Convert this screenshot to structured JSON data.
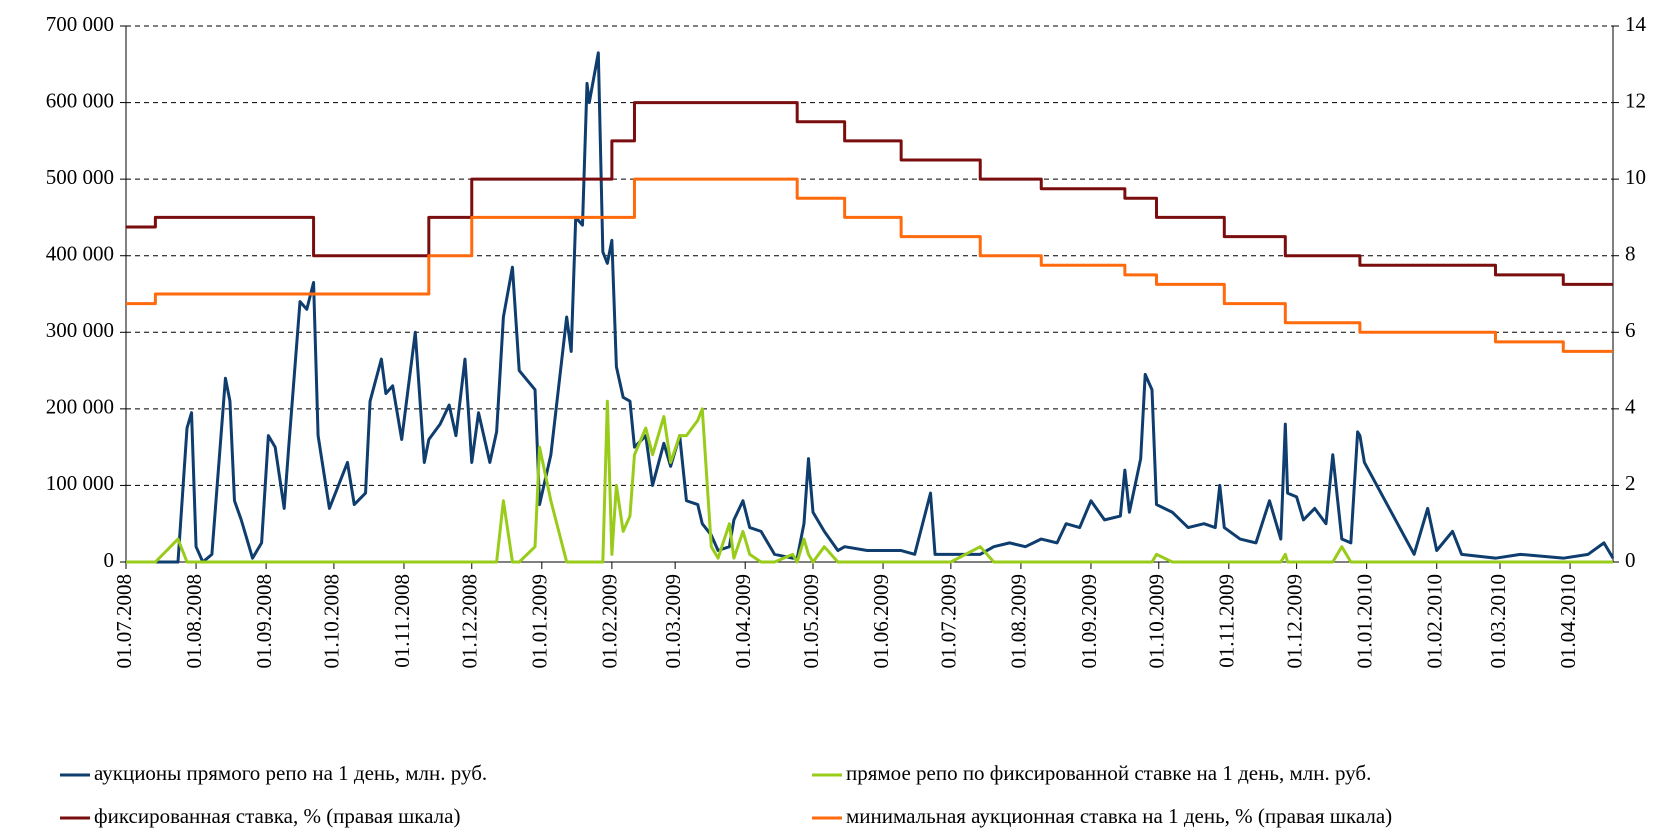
{
  "chart_data": {
    "type": "line",
    "x": [
      "01.07.2008",
      "14.07.2008",
      "24.07.2008",
      "28.07.2008",
      "30.07.2008",
      "01.08.2008",
      "04.08.2008",
      "08.08.2008",
      "14.08.2008",
      "16.08.2008",
      "18.08.2008",
      "21.08.2008",
      "26.08.2008",
      "30.08.2008",
      "02.09.2008",
      "05.09.2008",
      "09.09.2008",
      "11.09.2008",
      "16.09.2008",
      "19.09.2008",
      "22.09.2008",
      "24.09.2008",
      "29.09.2008",
      "07.10.2008",
      "10.10.2008",
      "15.10.2008",
      "17.10.2008",
      "22.10.2008",
      "24.10.2008",
      "27.10.2008",
      "31.10.2008",
      "06.11.2008",
      "10.11.2008",
      "12.11.2008",
      "17.11.2008",
      "21.11.2008",
      "24.11.2008",
      "28.11.2008",
      "01.12.2008",
      "04.12.2008",
      "09.12.2008",
      "12.12.2008",
      "15.12.2008",
      "19.12.2008",
      "22.12.2008",
      "29.12.2008",
      "31.12.2008",
      "05.01.2009",
      "12.01.2009",
      "14.01.2009",
      "16.01.2009",
      "19.01.2009",
      "21.01.2009",
      "22.01.2009",
      "26.01.2009",
      "28.01.2009",
      "30.01.2009",
      "01.02.2009",
      "03.02.2009",
      "06.02.2009",
      "09.02.2009",
      "11.02.2009",
      "16.02.2009",
      "19.02.2009",
      "24.02.2009",
      "27.02.2009",
      "03.03.2009",
      "06.03.2009",
      "11.03.2009",
      "13.03.2009",
      "17.03.2009",
      "20.03.2009",
      "25.03.2009",
      "27.03.2009",
      "31.03.2009",
      "03.04.2009",
      "08.04.2009",
      "14.04.2009",
      "22.04.2009",
      "24.04.2009",
      "27.04.2009",
      "29.04.2009",
      "01.05.2009",
      "06.05.2009",
      "12.05.2009",
      "15.05.2009",
      "25.05.2009",
      "05.06.2009",
      "09.06.2009",
      "15.06.2009",
      "22.06.2009",
      "24.06.2009",
      "01.07.2009",
      "14.07.2009",
      "20.07.2009",
      "27.07.2009",
      "03.08.2009",
      "10.08.2009",
      "17.08.2009",
      "21.08.2009",
      "27.08.2009",
      "01.09.2009",
      "07.09.2009",
      "14.09.2009",
      "16.09.2009",
      "18.09.2009",
      "23.09.2009",
      "25.09.2009",
      "28.09.2009",
      "30.09.2009",
      "07.10.2009",
      "14.10.2009",
      "21.10.2009",
      "26.10.2009",
      "28.10.2009",
      "30.10.2009",
      "06.11.2009",
      "13.11.2009",
      "19.11.2009",
      "24.11.2009",
      "26.11.2009",
      "27.11.2009",
      "01.12.2009",
      "04.12.2009",
      "09.12.2009",
      "14.12.2009",
      "17.12.2009",
      "21.12.2009",
      "25.12.2009",
      "28.12.2009",
      "29.12.2009",
      "31.12.2009",
      "22.01.2010",
      "28.01.2010",
      "01.02.2010",
      "08.02.2010",
      "12.02.2010",
      "27.02.2010",
      "10.03.2010",
      "29.03.2010",
      "09.04.2010",
      "16.04.2010",
      "20.04.2010"
    ],
    "series": [
      {
        "name": "аукционы прямого репо на 1 день, млн. руб.",
        "color": "#0e3d6e",
        "values": [
          0,
          0,
          0,
          175000,
          195000,
          20000,
          0,
          10000,
          240000,
          210000,
          80000,
          55000,
          5000,
          25000,
          165000,
          150000,
          70000,
          150000,
          340000,
          330000,
          365000,
          165000,
          70000,
          130000,
          75000,
          90000,
          210000,
          265000,
          220000,
          230000,
          160000,
          300000,
          130000,
          160000,
          180000,
          205000,
          165000,
          265000,
          130000,
          195000,
          130000,
          170000,
          320000,
          385000,
          250000,
          225000,
          75000,
          140000,
          320000,
          275000,
          450000,
          440000,
          625000,
          600000,
          665000,
          405000,
          390000,
          420000,
          255000,
          215000,
          210000,
          150000,
          165000,
          100000,
          155000,
          125000,
          165000,
          80000,
          75000,
          50000,
          35000,
          15000,
          20000,
          55000,
          80000,
          45000,
          40000,
          10000,
          5000,
          5000,
          50000,
          135000,
          65000,
          40000,
          15000,
          20000,
          15000,
          15000,
          15000,
          10000,
          90000,
          10000,
          10000,
          10000,
          20000,
          25000,
          20000,
          30000,
          25000,
          50000,
          45000,
          80000,
          55000,
          60000,
          120000,
          65000,
          135000,
          245000,
          225000,
          75000,
          65000,
          45000,
          50000,
          45000,
          100000,
          45000,
          30000,
          25000,
          80000,
          30000,
          180000,
          90000,
          85000,
          55000,
          70000,
          50000,
          140000,
          30000,
          25000,
          170000,
          165000,
          130000,
          10000,
          70000,
          15000,
          40000,
          10000,
          5000,
          10000,
          5000,
          10000,
          25000,
          5000
        ]
      },
      {
        "name": "прямое репо по фиксированной ставке на 1 день, млн. руб.",
        "color": "#99cc1a",
        "values": [
          0,
          0,
          30000,
          0,
          0,
          0,
          0,
          0,
          0,
          0,
          0,
          0,
          0,
          0,
          0,
          0,
          0,
          0,
          0,
          0,
          0,
          0,
          0,
          0,
          0,
          0,
          0,
          0,
          0,
          0,
          0,
          0,
          0,
          0,
          0,
          0,
          0,
          0,
          0,
          0,
          0,
          0,
          80000,
          0,
          0,
          20000,
          150000,
          80000,
          0,
          0,
          0,
          0,
          0,
          0,
          0,
          0,
          210000,
          10000,
          100000,
          40000,
          60000,
          140000,
          175000,
          140000,
          190000,
          130000,
          165000,
          165000,
          185000,
          200000,
          20000,
          5000,
          50000,
          5000,
          40000,
          10000,
          0,
          0,
          10000,
          0,
          30000,
          10000,
          0,
          20000,
          0,
          0,
          0,
          0,
          0,
          0,
          0,
          0,
          0,
          20000,
          0,
          0,
          0,
          0,
          0,
          0,
          0,
          0,
          0,
          0,
          0,
          0,
          0,
          0,
          0,
          10000,
          0,
          0,
          0,
          0,
          0,
          0,
          0,
          0,
          0,
          0,
          10000,
          0,
          0,
          0,
          0,
          0,
          0,
          20000,
          0,
          0,
          0,
          0,
          0,
          0,
          0,
          0,
          0,
          0,
          0,
          0,
          0,
          0,
          0
        ]
      },
      {
        "name": "фиксированная ставка, % (правая шкала)",
        "color": "#7a0e0e",
        "axis": "y2",
        "step": true,
        "values": [
          8.75,
          9,
          9,
          9,
          9,
          9,
          9,
          9,
          9,
          9,
          9,
          9,
          9,
          9,
          9,
          9,
          9,
          9,
          9,
          9,
          8,
          8,
          8,
          8,
          8,
          8,
          8,
          8,
          8,
          8,
          8,
          8,
          8,
          9,
          9,
          9,
          9,
          9,
          10,
          10,
          10,
          10,
          10,
          10,
          10,
          10,
          10,
          10,
          10,
          10,
          10,
          10,
          10,
          10,
          10,
          10,
          10,
          11,
          11,
          11,
          11,
          12,
          12,
          12,
          12,
          12,
          12,
          12,
          12,
          12,
          12,
          12,
          12,
          12,
          12,
          12,
          12,
          12,
          12,
          11.5,
          11.5,
          11.5,
          11.5,
          11.5,
          11.5,
          11,
          11,
          11,
          10.5,
          10.5,
          10.5,
          10.5,
          10.5,
          10,
          10,
          10,
          10,
          9.75,
          9.75,
          9.75,
          9.75,
          9.75,
          9.75,
          9.75,
          9.5,
          9.5,
          9.5,
          9.5,
          9.5,
          9,
          9,
          9,
          9,
          9,
          9,
          8.5,
          8.5,
          8.5,
          8.5,
          8.5,
          8,
          8,
          8,
          8,
          8,
          8,
          8,
          8,
          8,
          8,
          7.75,
          7.75,
          7.75,
          7.75,
          7.75,
          7.75,
          7.75,
          7.5,
          7.5,
          7.25,
          7.25,
          7.25,
          7.25
        ]
      },
      {
        "name": "минимальная аукционная ставка на 1 день, % (правая шкала)",
        "color": "#ff6a0d",
        "axis": "y2",
        "step": true,
        "values": [
          6.75,
          7,
          7,
          7,
          7,
          7,
          7,
          7,
          7,
          7,
          7,
          7,
          7,
          7,
          7,
          7,
          7,
          7,
          7,
          7,
          7,
          7,
          7,
          7,
          7,
          7,
          7,
          7,
          7,
          7,
          7,
          7,
          7,
          8,
          8,
          8,
          8,
          8,
          9,
          9,
          9,
          9,
          9,
          9,
          9,
          9,
          9,
          9,
          9,
          9,
          9,
          9,
          9,
          9,
          9,
          9,
          9,
          9,
          9,
          9,
          9,
          10,
          10,
          10,
          10,
          10,
          10,
          10,
          10,
          10,
          10,
          10,
          10,
          10,
          10,
          10,
          10,
          10,
          10,
          9.5,
          9.5,
          9.5,
          9.5,
          9.5,
          9.5,
          9,
          9,
          9,
          8.5,
          8.5,
          8.5,
          8.5,
          8.5,
          8,
          8,
          8,
          8,
          7.75,
          7.75,
          7.75,
          7.75,
          7.75,
          7.75,
          7.75,
          7.5,
          7.5,
          7.5,
          7.5,
          7.5,
          7.25,
          7.25,
          7.25,
          7.25,
          7.25,
          7.25,
          6.75,
          6.75,
          6.75,
          6.75,
          6.75,
          6.25,
          6.25,
          6.25,
          6.25,
          6.25,
          6.25,
          6.25,
          6.25,
          6.25,
          6.25,
          6,
          6,
          6,
          6,
          6,
          6,
          6,
          5.75,
          5.75,
          5.5,
          5.5,
          5.5,
          5.5
        ]
      }
    ],
    "xlim": [
      "01.07.2008",
      "20.04.2010"
    ],
    "xticks": [
      "01.07.2008",
      "01.08.2008",
      "01.09.2008",
      "01.10.2008",
      "01.11.2008",
      "01.12.2008",
      "01.01.2009",
      "01.02.2009",
      "01.03.2009",
      "01.04.2009",
      "01.05.2009",
      "01.06.2009",
      "01.07.2009",
      "01.08.2009",
      "01.09.2009",
      "01.10.2009",
      "01.11.2009",
      "01.12.2009",
      "01.01.2010",
      "01.02.2010",
      "01.03.2010",
      "01.04.2010"
    ],
    "ylim": [
      0,
      700000
    ],
    "yticks": [
      0,
      {
        "value": 100000,
        "label": "100 000"
      },
      {
        "value": 200000,
        "label": "200 000"
      },
      {
        "value": 300000,
        "label": "300 000"
      },
      {
        "value": 400000,
        "label": "400 000"
      },
      {
        "value": 500000,
        "label": "500 000"
      },
      {
        "value": 600000,
        "label": "600 000"
      },
      {
        "value": 700000,
        "label": "700 000"
      }
    ],
    "y2lim": [
      0,
      14
    ],
    "y2ticks": [
      0,
      2,
      4,
      6,
      8,
      10,
      12,
      14
    ],
    "grid": true,
    "legend": "bottom"
  }
}
